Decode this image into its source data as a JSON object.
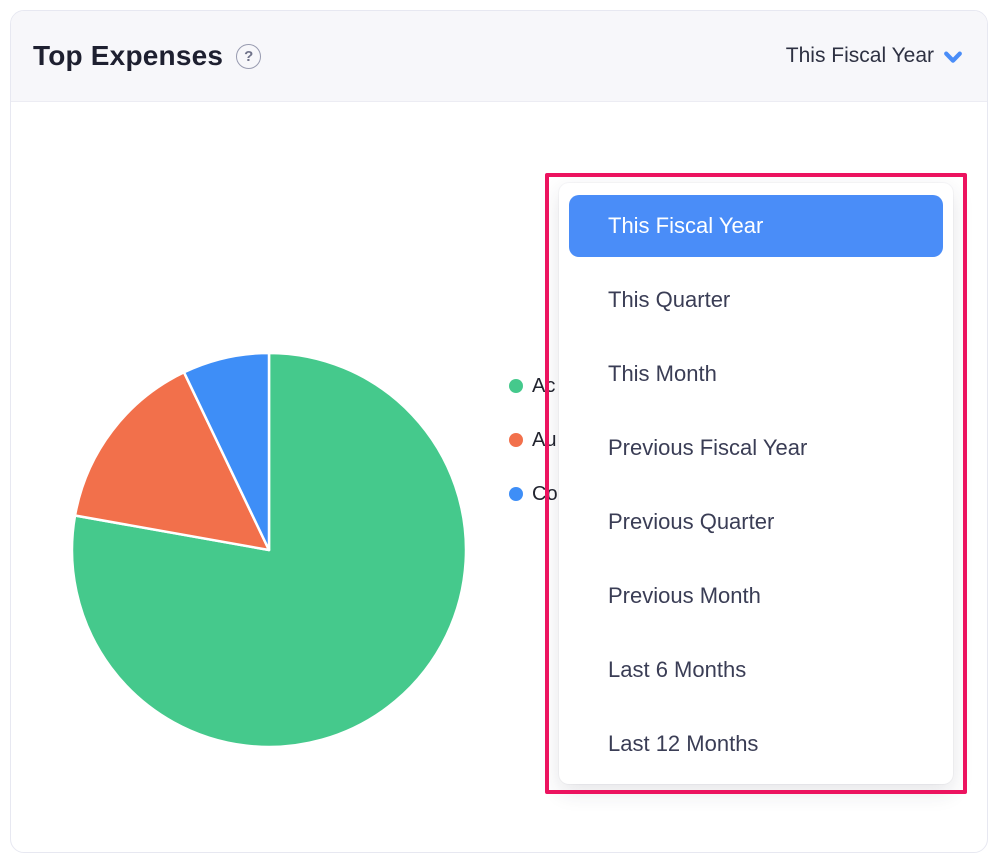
{
  "card": {
    "header": {
      "title": "Top Expenses",
      "help_icon": "?",
      "period_selector": {
        "label": "This Fiscal Year"
      }
    }
  },
  "dropdown": {
    "selected_index": 0,
    "items": [
      {
        "label": "This Fiscal Year"
      },
      {
        "label": "This Quarter"
      },
      {
        "label": "This Month"
      },
      {
        "label": "Previous Fiscal Year"
      },
      {
        "label": "Previous Quarter"
      },
      {
        "label": "Previous Month"
      },
      {
        "label": "Last 6 Months"
      },
      {
        "label": "Last 12 Months"
      }
    ]
  },
  "chart_data": {
    "type": "pie",
    "title": "Top Expenses",
    "period": "This Fiscal Year",
    "legend_position": "right",
    "start_angle": "top",
    "direction": "clockwise",
    "slices": [
      {
        "label": "Ac",
        "value": 77.8,
        "color": "#45c98c"
      },
      {
        "label": "Au",
        "value": 15.1,
        "color": "#f2704b"
      },
      {
        "label": "Co",
        "value": 7.1,
        "color": "#3e8ef7"
      }
    ]
  },
  "colors": {
    "accent_blue": "#4a8df8",
    "annotation_pink": "#ec135f",
    "header_bg": "#f7f7fa",
    "menu_text": "#3a3d55",
    "selected_text": "#ffffff"
  }
}
